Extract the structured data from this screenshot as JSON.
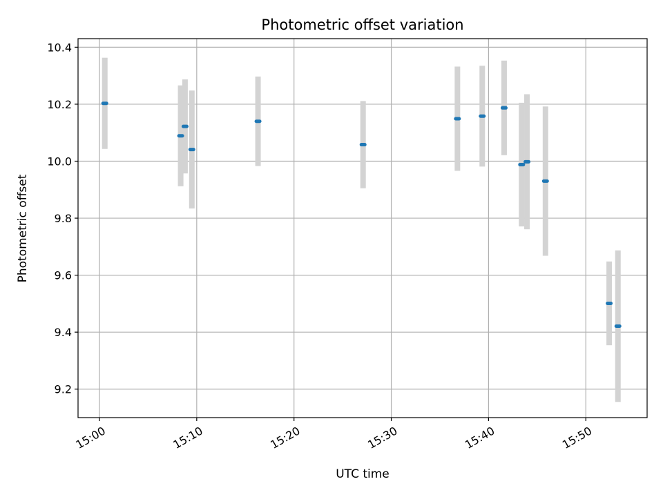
{
  "chart_data": {
    "type": "scatter",
    "title": "Photometric offset variation",
    "xlabel": "UTC time",
    "ylabel": "Photometric offset",
    "xlim_minutes": [
      -2.2,
      56.3
    ],
    "ylim": [
      9.1,
      10.43
    ],
    "x_ticks": [
      {
        "minutes": 0,
        "label": "15:00"
      },
      {
        "minutes": 10,
        "label": "15:10"
      },
      {
        "minutes": 20,
        "label": "15:20"
      },
      {
        "minutes": 30,
        "label": "15:30"
      },
      {
        "minutes": 40,
        "label": "15:40"
      },
      {
        "minutes": 50,
        "label": "15:50"
      }
    ],
    "y_ticks": [
      {
        "value": 9.2,
        "label": "9.2"
      },
      {
        "value": 9.4,
        "label": "9.4"
      },
      {
        "value": 9.6,
        "label": "9.6"
      },
      {
        "value": 9.8,
        "label": "9.8"
      },
      {
        "value": 10.0,
        "label": "10.0"
      },
      {
        "value": 10.2,
        "label": "10.2"
      },
      {
        "value": 10.4,
        "label": "10.4"
      }
    ],
    "grid": true,
    "colors": {
      "marker": "#1f77b4",
      "errorbar": "#d3d3d3",
      "grid": "#b0b0b0"
    },
    "series": [
      {
        "name": "offset",
        "points": [
          {
            "x_min": 0.55,
            "y": 10.203,
            "err": 0.16
          },
          {
            "x_min": 8.35,
            "y": 10.089,
            "err": 0.177
          },
          {
            "x_min": 8.8,
            "y": 10.122,
            "err": 0.165
          },
          {
            "x_min": 9.5,
            "y": 10.041,
            "err": 0.207
          },
          {
            "x_min": 16.3,
            "y": 10.14,
            "err": 0.157
          },
          {
            "x_min": 27.1,
            "y": 10.058,
            "err": 0.153
          },
          {
            "x_min": 36.8,
            "y": 10.149,
            "err": 0.183
          },
          {
            "x_min": 39.35,
            "y": 10.158,
            "err": 0.177
          },
          {
            "x_min": 41.6,
            "y": 10.187,
            "err": 0.166
          },
          {
            "x_min": 43.4,
            "y": 9.988,
            "err": 0.217
          },
          {
            "x_min": 43.95,
            "y": 9.998,
            "err": 0.237
          },
          {
            "x_min": 45.85,
            "y": 9.93,
            "err": 0.262
          },
          {
            "x_min": 52.4,
            "y": 9.501,
            "err": 0.147
          },
          {
            "x_min": 53.3,
            "y": 9.421,
            "err": 0.266
          }
        ]
      }
    ]
  }
}
